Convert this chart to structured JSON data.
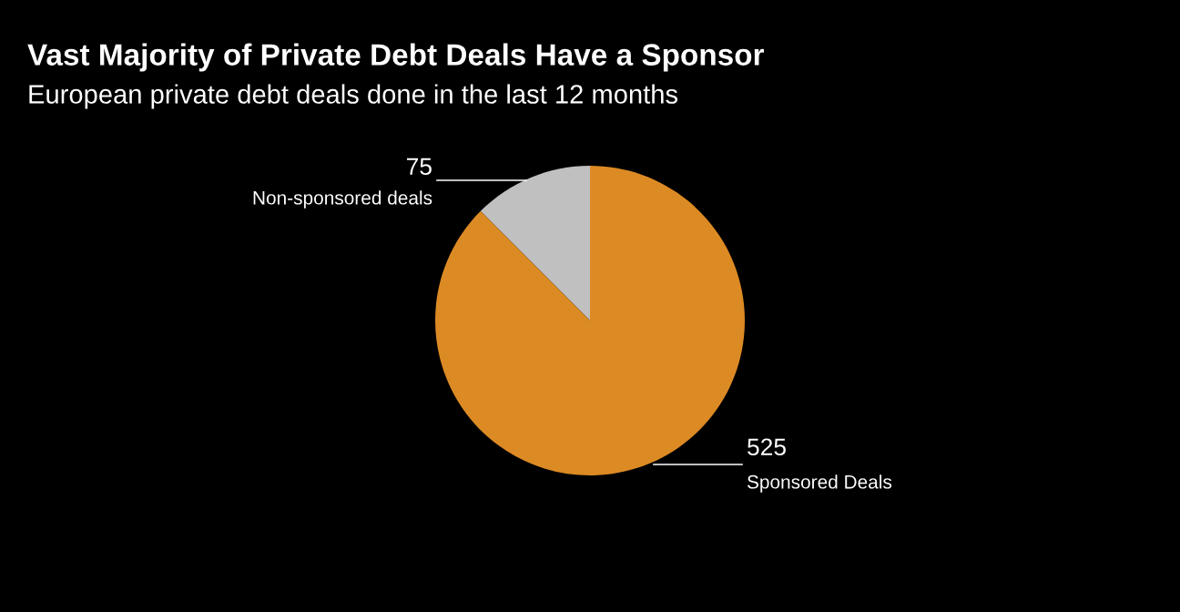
{
  "chart_data": {
    "type": "pie",
    "title": "Vast Majority of Private Debt Deals Have a Sponsor",
    "subtitle": "European private debt deals done in the last 12 months",
    "categories": [
      "Non-sponsored deals",
      "Sponsored Deals"
    ],
    "values": [
      75,
      525
    ],
    "colors": [
      "#c0c0c0",
      "#dc8a24"
    ],
    "data_labels": true
  }
}
